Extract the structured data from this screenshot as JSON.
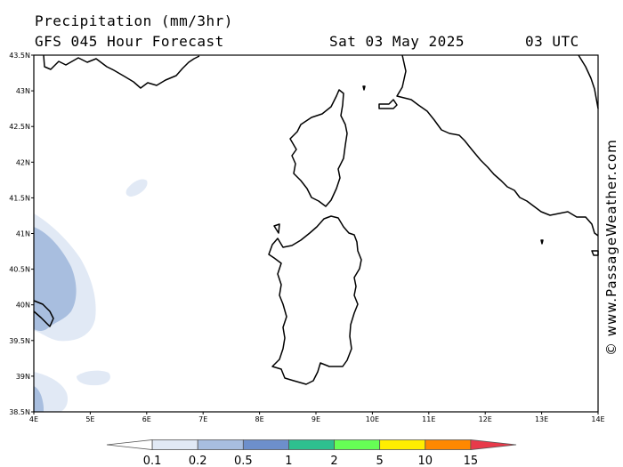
{
  "header": {
    "title": "Precipitation (mm/3hr)",
    "subtitle": "GFS 045 Hour Forecast",
    "date": "Sat 03 May 2025",
    "time": "03 UTC"
  },
  "watermark": "© www.PassageWeather.com",
  "map": {
    "lon_range": [
      4,
      14
    ],
    "lat_range": [
      38.5,
      43.5
    ],
    "lat_labels": [
      "43.5N",
      "43N",
      "42.5N",
      "42N",
      "41.5N",
      "41N",
      "40.5N",
      "40N",
      "39.5N",
      "39N",
      "38.5N"
    ],
    "lon_labels": [
      "4E",
      "5E",
      "6E",
      "7E",
      "8E",
      "9E",
      "10E",
      "11E",
      "12E",
      "13E",
      "14E"
    ]
  },
  "legend": {
    "labels": [
      "0.1",
      "0.2",
      "0.5",
      "1",
      "2",
      "5",
      "10",
      "15"
    ],
    "colors": [
      "#ffffff",
      "#e1e9f5",
      "#a8bedf",
      "#6d8fcb",
      "#2ec08f",
      "#66ff55",
      "#ffee00",
      "#ff8800",
      "#e83a4a"
    ]
  },
  "colors": {
    "precip_light": "#e1e9f5",
    "precip_medium": "#a8bedf",
    "coast": "#000000"
  }
}
